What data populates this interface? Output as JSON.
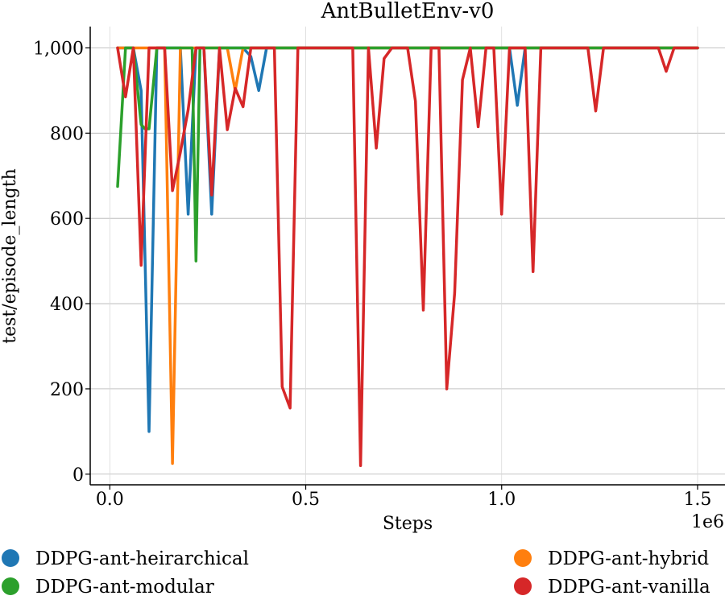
{
  "chart_data": {
    "type": "line",
    "title": "AntBulletEnv-v0",
    "xlabel": "Steps",
    "ylabel": "test/episode_length",
    "x_offset_label": "1e6",
    "xlim": [
      -0.05,
      1.57
    ],
    "ylim": [
      -25,
      1050
    ],
    "x_ticks": [
      0.0,
      0.5,
      1.0,
      1.5
    ],
    "x_tick_labels": [
      "0.0",
      "0.5",
      "1.0",
      "1.5"
    ],
    "y_ticks": [
      0,
      200,
      400,
      600,
      800,
      1000
    ],
    "y_tick_labels": [
      "0",
      "200",
      "400",
      "600",
      "800",
      "1,000"
    ],
    "grid": true,
    "legend_position": "bottom",
    "series": [
      {
        "name": "DDPG-ant-heirarchical",
        "color": "#1f77b4",
        "x": [
          0.02,
          0.04,
          0.06,
          0.08,
          0.1,
          0.12,
          0.14,
          0.16,
          0.18,
          0.2,
          0.22,
          0.24,
          0.26,
          0.28,
          0.3,
          0.32,
          0.34,
          0.36,
          0.38,
          0.4,
          0.42,
          0.44,
          0.46,
          0.48,
          0.5,
          0.6,
          0.7,
          0.8,
          0.9,
          1.0,
          1.02,
          1.04,
          1.06,
          1.1,
          1.2,
          1.3,
          1.4,
          1.5
        ],
        "y": [
          1000,
          1000,
          1000,
          900,
          100,
          1000,
          1000,
          1000,
          1000,
          610,
          1000,
          1000,
          610,
          1000,
          1000,
          1000,
          1000,
          980,
          900,
          1000,
          1000,
          1000,
          1000,
          1000,
          1000,
          1000,
          1000,
          1000,
          1000,
          1000,
          1000,
          865,
          1000,
          1000,
          1000,
          1000,
          1000,
          1000
        ]
      },
      {
        "name": "DDPG-ant-hybrid",
        "color": "#ff7f0e",
        "x": [
          0.02,
          0.04,
          0.06,
          0.08,
          0.1,
          0.12,
          0.14,
          0.16,
          0.18,
          0.2,
          0.22,
          0.24,
          0.26,
          0.28,
          0.3,
          0.32,
          0.34,
          0.36,
          0.38,
          0.4,
          0.5,
          0.6,
          0.7,
          0.8,
          0.9,
          1.0,
          1.1,
          1.2,
          1.3,
          1.4,
          1.5
        ],
        "y": [
          1000,
          1000,
          1000,
          1000,
          1000,
          1000,
          1000,
          25,
          1000,
          1000,
          1000,
          1000,
          1000,
          1000,
          1000,
          900,
          1000,
          1000,
          1000,
          1000,
          1000,
          1000,
          1000,
          1000,
          1000,
          1000,
          1000,
          1000,
          1000,
          1000,
          1000
        ]
      },
      {
        "name": "DDPG-ant-modular",
        "color": "#2ca02c",
        "x": [
          0.02,
          0.04,
          0.06,
          0.08,
          0.09,
          0.1,
          0.12,
          0.14,
          0.16,
          0.18,
          0.2,
          0.21,
          0.22,
          0.23,
          0.24,
          0.26,
          0.3,
          0.4,
          0.5,
          0.6,
          0.7,
          0.8,
          0.9,
          1.0,
          1.1,
          1.2,
          1.3,
          1.4,
          1.5
        ],
        "y": [
          675,
          1000,
          1000,
          820,
          810,
          810,
          1000,
          1000,
          1000,
          1000,
          1000,
          1000,
          500,
          1000,
          1000,
          1000,
          1000,
          1000,
          1000,
          1000,
          1000,
          1000,
          1000,
          1000,
          1000,
          1000,
          1000,
          1000,
          1000
        ]
      },
      {
        "name": "DDPG-ant-vanilla",
        "color": "#d62728",
        "x": [
          0.02,
          0.04,
          0.06,
          0.08,
          0.1,
          0.12,
          0.14,
          0.16,
          0.18,
          0.2,
          0.22,
          0.24,
          0.26,
          0.28,
          0.3,
          0.32,
          0.34,
          0.36,
          0.38,
          0.4,
          0.42,
          0.44,
          0.46,
          0.48,
          0.5,
          0.52,
          0.54,
          0.56,
          0.58,
          0.6,
          0.62,
          0.64,
          0.66,
          0.68,
          0.7,
          0.72,
          0.74,
          0.76,
          0.78,
          0.8,
          0.82,
          0.84,
          0.86,
          0.88,
          0.9,
          0.92,
          0.94,
          0.96,
          0.98,
          1.0,
          1.02,
          1.04,
          1.06,
          1.08,
          1.1,
          1.12,
          1.14,
          1.16,
          1.18,
          1.2,
          1.22,
          1.24,
          1.26,
          1.28,
          1.3,
          1.32,
          1.34,
          1.36,
          1.38,
          1.4,
          1.42,
          1.44,
          1.46,
          1.48,
          1.5
        ],
        "y": [
          1000,
          885,
          1000,
          490,
          1000,
          1000,
          1000,
          665,
          755,
          855,
          1000,
          1000,
          655,
          1000,
          808,
          905,
          862,
          1000,
          1000,
          1000,
          1000,
          205,
          155,
          1000,
          1000,
          1000,
          1000,
          1000,
          1000,
          1000,
          1000,
          20,
          1000,
          765,
          975,
          1000,
          1000,
          1000,
          875,
          385,
          1000,
          1000,
          200,
          425,
          925,
          1000,
          815,
          1000,
          1000,
          610,
          1000,
          1000,
          1000,
          475,
          1000,
          1000,
          1000,
          1000,
          1000,
          1000,
          1000,
          852,
          1000,
          1000,
          1000,
          1000,
          1000,
          1000,
          1000,
          1000,
          945,
          1000,
          1000,
          1000,
          1000
        ]
      }
    ]
  }
}
